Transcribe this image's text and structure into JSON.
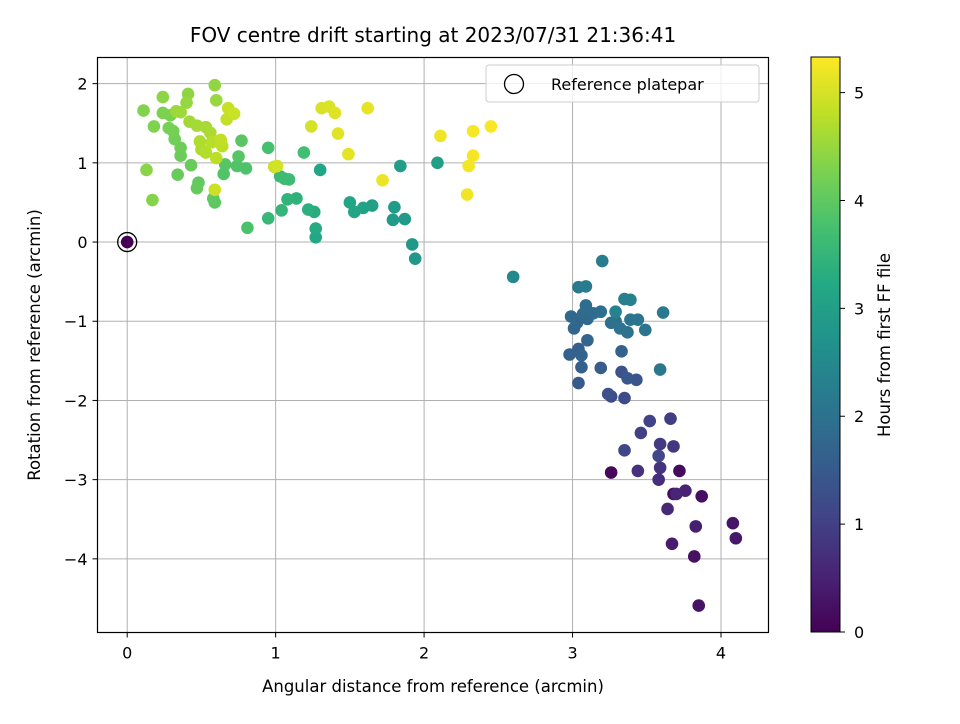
{
  "chart_data": {
    "type": "scatter",
    "title": "FOV centre drift starting at 2023/07/31 21:36:41",
    "xlabel": "Angular distance from reference (arcmin)",
    "ylabel": "Rotation from reference (arcmin)",
    "xlim": [
      -0.2,
      4.32
    ],
    "ylim": [
      -4.93,
      2.33
    ],
    "xticks": [
      "0",
      "1",
      "2",
      "3",
      "4"
    ],
    "yticks": [
      "−4",
      "−3",
      "−2",
      "−1",
      "0",
      "1",
      "2"
    ],
    "grid": true,
    "legend": {
      "position": "top-right",
      "entries": [
        "Reference platepar"
      ]
    },
    "colorbar": {
      "label": "Hours from first FF file",
      "colormap": "viridis",
      "range": [
        0,
        5.33
      ],
      "ticks": [
        "0",
        "1",
        "2",
        "3",
        "4",
        "5"
      ]
    },
    "reference_point": {
      "x": 0,
      "y": 0,
      "hours": 0
    },
    "points": [
      [
        3.26,
        -2.91,
        0.1
      ],
      [
        3.72,
        -2.89,
        0.15
      ],
      [
        3.68,
        -3.18,
        0.2
      ],
      [
        3.87,
        -3.21,
        0.22
      ],
      [
        3.82,
        -3.97,
        0.25
      ],
      [
        3.85,
        -4.59,
        0.28
      ],
      [
        4.08,
        -3.55,
        0.3
      ],
      [
        4.1,
        -3.74,
        0.35
      ],
      [
        3.67,
        -3.81,
        0.4
      ],
      [
        3.83,
        -3.59,
        0.45
      ],
      [
        3.76,
        -3.14,
        0.5
      ],
      [
        3.7,
        -3.18,
        0.55
      ],
      [
        3.64,
        -3.37,
        0.6
      ],
      [
        3.58,
        -3.0,
        0.7
      ],
      [
        3.44,
        -2.89,
        0.75
      ],
      [
        3.59,
        -2.85,
        0.8
      ],
      [
        3.68,
        -2.58,
        0.85
      ],
      [
        3.59,
        -2.55,
        0.9
      ],
      [
        3.66,
        -2.23,
        0.95
      ],
      [
        3.46,
        -2.41,
        1.0
      ],
      [
        3.52,
        -2.26,
        1.05
      ],
      [
        3.35,
        -2.63,
        1.1
      ],
      [
        3.58,
        -2.7,
        1.15
      ],
      [
        3.35,
        -1.97,
        1.2
      ],
      [
        3.26,
        -1.95,
        1.25
      ],
      [
        3.24,
        -1.92,
        1.3
      ],
      [
        3.33,
        -1.64,
        1.35
      ],
      [
        3.43,
        -1.74,
        1.4
      ],
      [
        3.37,
        -1.72,
        1.45
      ],
      [
        3.04,
        -1.78,
        1.5
      ],
      [
        3.19,
        -1.59,
        1.55
      ],
      [
        3.06,
        -1.58,
        1.6
      ],
      [
        3.04,
        -1.35,
        1.62
      ],
      [
        2.98,
        -1.42,
        1.65
      ],
      [
        3.33,
        -1.38,
        1.68
      ],
      [
        3.06,
        -1.43,
        1.7
      ],
      [
        3.1,
        -1.24,
        1.72
      ],
      [
        3.01,
        -1.09,
        1.75
      ],
      [
        3.03,
        -1.02,
        1.78
      ],
      [
        2.99,
        -0.94,
        1.8
      ],
      [
        3.1,
        -0.97,
        1.82
      ],
      [
        3.07,
        -0.91,
        1.85
      ],
      [
        3.14,
        -0.9,
        1.88
      ],
      [
        3.09,
        -0.8,
        1.9
      ],
      [
        3.19,
        -0.88,
        1.92
      ],
      [
        3.26,
        -1.02,
        1.95
      ],
      [
        3.29,
        -1.0,
        1.98
      ],
      [
        3.32,
        -1.09,
        2.0
      ],
      [
        3.37,
        -1.14,
        2.02
      ],
      [
        3.39,
        -0.98,
        2.05
      ],
      [
        3.44,
        -0.98,
        2.08
      ],
      [
        3.49,
        -1.11,
        2.1
      ],
      [
        3.59,
        -1.61,
        2.12
      ],
      [
        3.61,
        -0.89,
        2.15
      ],
      [
        3.04,
        -0.57,
        2.18
      ],
      [
        3.09,
        -0.56,
        2.2
      ],
      [
        3.2,
        -0.24,
        2.22
      ],
      [
        3.35,
        -0.72,
        2.28
      ],
      [
        3.39,
        -0.73,
        2.32
      ],
      [
        3.29,
        -0.88,
        2.35
      ],
      [
        2.6,
        -0.44,
        2.5
      ],
      [
        1.94,
        -0.21,
        2.8
      ],
      [
        1.92,
        -0.03,
        2.85
      ],
      [
        1.87,
        0.29,
        2.88
      ],
      [
        1.79,
        0.28,
        2.9
      ],
      [
        1.8,
        0.44,
        2.92
      ],
      [
        1.84,
        0.96,
        2.95
      ],
      [
        2.09,
        1.0,
        2.98
      ],
      [
        1.65,
        0.46,
        3.0
      ],
      [
        1.59,
        0.43,
        3.05
      ],
      [
        1.53,
        0.38,
        3.1
      ],
      [
        1.5,
        0.5,
        3.12
      ],
      [
        1.3,
        0.91,
        3.15
      ],
      [
        1.27,
        0.06,
        3.2
      ],
      [
        1.27,
        0.17,
        3.25
      ],
      [
        1.26,
        0.38,
        3.3
      ],
      [
        1.22,
        0.41,
        3.35
      ],
      [
        1.14,
        0.55,
        3.4
      ],
      [
        1.08,
        0.54,
        3.45
      ],
      [
        1.04,
        0.4,
        3.5
      ],
      [
        0.95,
        0.3,
        3.55
      ],
      [
        1.03,
        0.83,
        3.6
      ],
      [
        1.06,
        0.8,
        3.62
      ],
      [
        1.09,
        0.79,
        3.65
      ],
      [
        1.19,
        1.13,
        3.7
      ],
      [
        0.95,
        1.19,
        3.75
      ],
      [
        0.81,
        0.18,
        3.8
      ],
      [
        0.8,
        0.93,
        3.82
      ],
      [
        0.74,
        0.96,
        3.85
      ],
      [
        0.65,
        0.86,
        3.87
      ],
      [
        0.66,
        0.98,
        3.9
      ],
      [
        0.75,
        1.08,
        3.92
      ],
      [
        0.77,
        1.28,
        3.95
      ],
      [
        0.59,
        0.5,
        3.98
      ],
      [
        0.58,
        0.55,
        4.0
      ],
      [
        0.48,
        0.75,
        4.02
      ],
      [
        0.47,
        0.68,
        4.05
      ],
      [
        0.34,
        0.85,
        4.08
      ],
      [
        0.43,
        0.97,
        4.1
      ],
      [
        0.36,
        1.09,
        4.12
      ],
      [
        0.36,
        1.19,
        4.15
      ],
      [
        0.32,
        1.3,
        4.18
      ],
      [
        0.31,
        1.4,
        4.2
      ],
      [
        0.28,
        1.44,
        4.22
      ],
      [
        0.29,
        1.6,
        4.25
      ],
      [
        0.24,
        1.63,
        4.28
      ],
      [
        0.18,
        1.46,
        4.3
      ],
      [
        0.11,
        1.66,
        4.32
      ],
      [
        0.17,
        0.53,
        4.35
      ],
      [
        0.13,
        0.91,
        4.38
      ],
      [
        0.24,
        1.83,
        4.4
      ],
      [
        0.41,
        1.87,
        4.42
      ],
      [
        0.59,
        1.98,
        4.45
      ],
      [
        0.4,
        1.76,
        4.48
      ],
      [
        0.6,
        1.79,
        4.5
      ],
      [
        0.33,
        1.65,
        4.52
      ],
      [
        0.36,
        1.64,
        4.55
      ],
      [
        0.42,
        1.52,
        4.58
      ],
      [
        0.47,
        1.47,
        4.6
      ],
      [
        0.53,
        1.45,
        4.62
      ],
      [
        0.56,
        1.38,
        4.65
      ],
      [
        0.49,
        1.27,
        4.68
      ],
      [
        0.5,
        1.17,
        4.7
      ],
      [
        0.53,
        1.13,
        4.72
      ],
      [
        0.57,
        1.26,
        4.75
      ],
      [
        0.6,
        1.06,
        4.78
      ],
      [
        0.64,
        1.21,
        4.8
      ],
      [
        0.63,
        1.29,
        4.82
      ],
      [
        0.67,
        1.55,
        4.85
      ],
      [
        0.68,
        1.69,
        4.88
      ],
      [
        0.72,
        1.62,
        4.9
      ],
      [
        0.59,
        0.66,
        4.92
      ],
      [
        0.99,
        0.95,
        4.95
      ],
      [
        1.01,
        0.96,
        4.97
      ],
      [
        1.24,
        1.46,
        5.0
      ],
      [
        1.31,
        1.69,
        5.03
      ],
      [
        1.36,
        1.71,
        5.05
      ],
      [
        1.4,
        1.63,
        5.07
      ],
      [
        1.42,
        1.37,
        5.1
      ],
      [
        1.49,
        1.11,
        5.12
      ],
      [
        1.62,
        1.69,
        5.15
      ],
      [
        1.72,
        0.78,
        5.18
      ],
      [
        2.11,
        1.34,
        5.2
      ],
      [
        2.29,
        0.6,
        5.22
      ],
      [
        2.3,
        0.96,
        5.24
      ],
      [
        2.33,
        1.09,
        5.26
      ],
      [
        2.33,
        1.4,
        5.28
      ],
      [
        2.45,
        1.46,
        5.3
      ]
    ]
  }
}
